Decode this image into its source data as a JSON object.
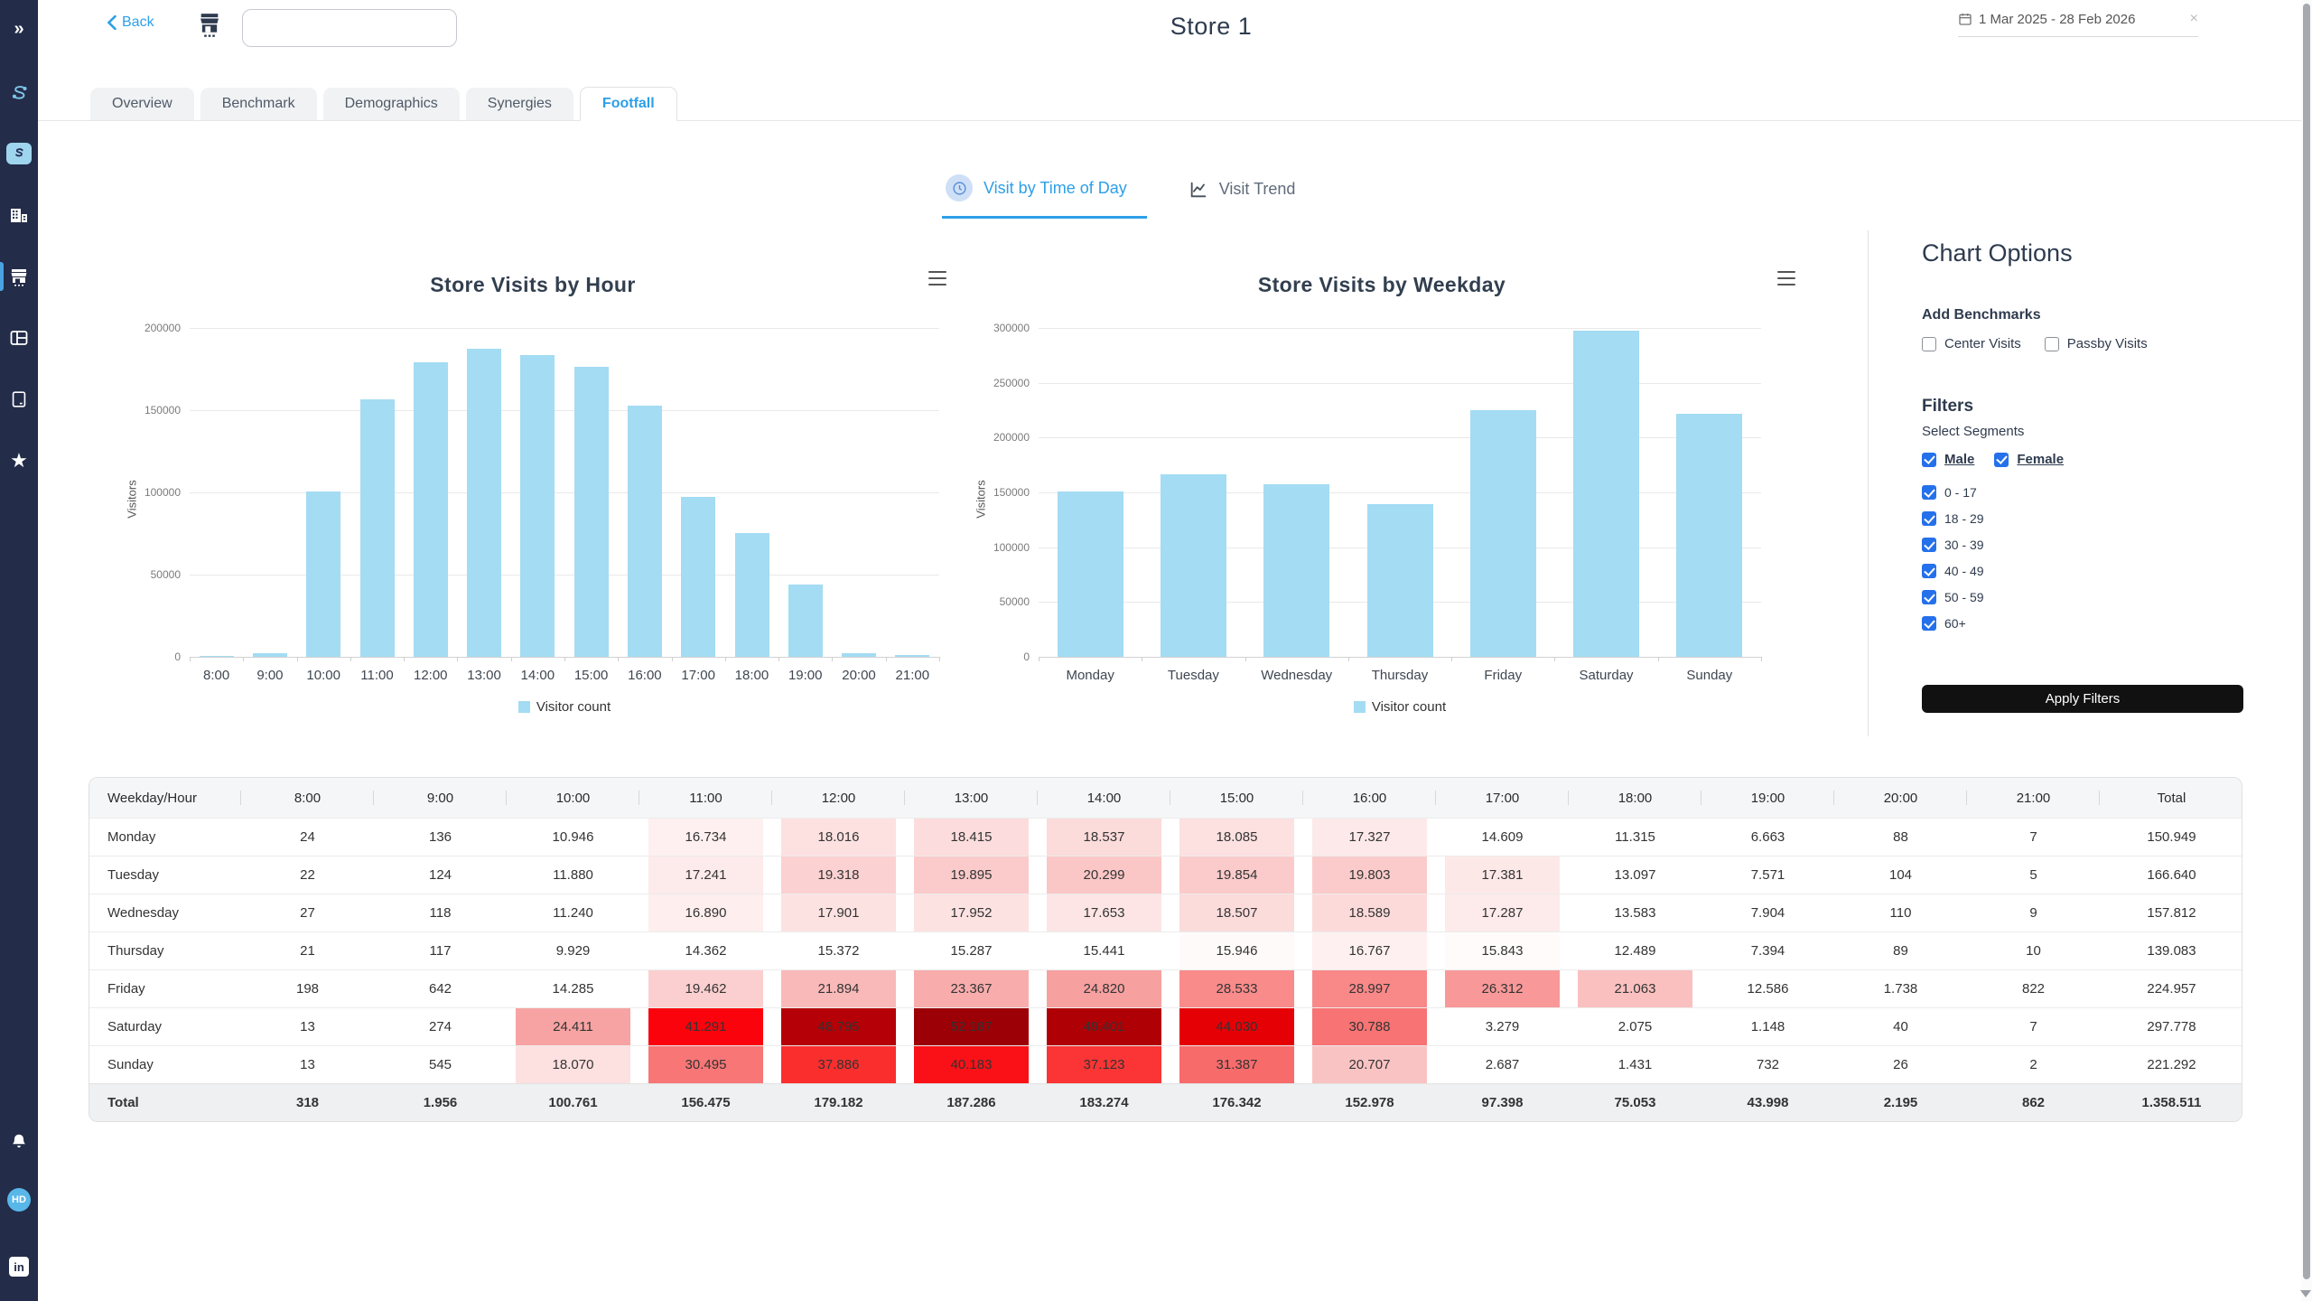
{
  "colors": {
    "accent": "#2d9fe8",
    "checkbox_blue": "#2570eb",
    "sidebar_bg": "#232c49",
    "bar_fill": "#a3dcf3",
    "apply_button_bg": "#111111"
  },
  "sidebar": {
    "icons": [
      "expand-sidebar-icon",
      "logo-icon",
      "app-icon",
      "buildings-icon",
      "store-icon",
      "layout-icon",
      "mobile-icon",
      "star-icon",
      "bell-icon",
      "avatar",
      "linkedin-icon"
    ],
    "active_item": "store-icon",
    "avatar_initials": "HD"
  },
  "header": {
    "back_label": "Back",
    "title": "Store 1",
    "search_value": "",
    "search_placeholder": "",
    "date_range": "1 Mar 2025 - 28 Feb 2026",
    "clear_date": "×"
  },
  "tabs": {
    "items": [
      {
        "label": "Overview",
        "active": false
      },
      {
        "label": "Benchmark",
        "active": false
      },
      {
        "label": "Demographics",
        "active": false
      },
      {
        "label": "Synergies",
        "active": false
      },
      {
        "label": "Footfall",
        "active": true
      }
    ]
  },
  "subtabs": {
    "items": [
      {
        "label": "Visit by Time of Day",
        "icon": "clock-icon",
        "active": true
      },
      {
        "label": "Visit Trend",
        "icon": "trend-icon",
        "active": false
      }
    ]
  },
  "chart_data": [
    {
      "type": "bar",
      "title": "Store Visits by Hour",
      "ylabel": "Visitors",
      "xlabel": "",
      "categories": [
        "8:00",
        "9:00",
        "10:00",
        "11:00",
        "12:00",
        "13:00",
        "14:00",
        "15:00",
        "16:00",
        "17:00",
        "18:00",
        "19:00",
        "20:00",
        "21:00"
      ],
      "values": [
        318,
        1956,
        100761,
        156475,
        179182,
        187286,
        183274,
        176342,
        152978,
        97398,
        75053,
        43998,
        2195,
        862
      ],
      "ylim": [
        0,
        200000
      ],
      "ytick_step": 50000,
      "grid": true,
      "legend": [
        "Visitor count"
      ],
      "legend_position": "bottom",
      "color": "#a3dcf3"
    },
    {
      "type": "bar",
      "title": "Store Visits by Weekday",
      "ylabel": "Visitors",
      "xlabel": "",
      "categories": [
        "Monday",
        "Tuesday",
        "Wednesday",
        "Thursday",
        "Friday",
        "Saturday",
        "Sunday"
      ],
      "values": [
        150949,
        166640,
        157812,
        139083,
        224957,
        297778,
        221292
      ],
      "ylim": [
        0,
        300000
      ],
      "ytick_step": 50000,
      "grid": true,
      "legend": [
        "Visitor count"
      ],
      "legend_position": "bottom",
      "color": "#a3dcf3"
    }
  ],
  "chart_options": {
    "title": "Chart Options",
    "benchmarks_label": "Add Benchmarks",
    "benchmarks": [
      {
        "label": "Center Visits",
        "checked": false
      },
      {
        "label": "Passby Visits",
        "checked": false
      }
    ],
    "filters_title": "Filters",
    "segments_label": "Select Segments",
    "gender_segments": [
      {
        "label": "Male",
        "checked": true
      },
      {
        "label": "Female",
        "checked": true
      }
    ],
    "age_segments": [
      {
        "label": "0 - 17",
        "checked": true
      },
      {
        "label": "18 - 29",
        "checked": true
      },
      {
        "label": "30 - 39",
        "checked": true
      },
      {
        "label": "40 - 49",
        "checked": true
      },
      {
        "label": "50 - 59",
        "checked": true
      },
      {
        "label": "60+",
        "checked": true
      }
    ],
    "apply_button": "Apply Filters"
  },
  "table": {
    "headers": [
      "Weekday/Hour",
      "8:00",
      "9:00",
      "10:00",
      "11:00",
      "12:00",
      "13:00",
      "14:00",
      "15:00",
      "16:00",
      "17:00",
      "18:00",
      "19:00",
      "20:00",
      "21:00",
      "Total"
    ],
    "rows": [
      {
        "label": "Monday",
        "values": [
          "24",
          "136",
          "10.946",
          "16.734",
          "18.016",
          "18.415",
          "18.537",
          "18.085",
          "17.327",
          "14.609",
          "11.315",
          "6.663",
          "88",
          "7",
          "150.949"
        ]
      },
      {
        "label": "Tuesday",
        "values": [
          "22",
          "124",
          "11.880",
          "17.241",
          "19.318",
          "19.895",
          "20.299",
          "19.854",
          "19.803",
          "17.381",
          "13.097",
          "7.571",
          "104",
          "5",
          "166.640"
        ]
      },
      {
        "label": "Wednesday",
        "values": [
          "27",
          "118",
          "11.240",
          "16.890",
          "17.901",
          "17.952",
          "17.653",
          "18.507",
          "18.589",
          "17.287",
          "13.583",
          "7.904",
          "110",
          "9",
          "157.812"
        ]
      },
      {
        "label": "Thursday",
        "values": [
          "21",
          "117",
          "9.929",
          "14.362",
          "15.372",
          "15.287",
          "15.441",
          "15.946",
          "16.767",
          "15.843",
          "12.489",
          "7.394",
          "89",
          "10",
          "139.083"
        ]
      },
      {
        "label": "Friday",
        "values": [
          "198",
          "642",
          "14.285",
          "19.462",
          "21.894",
          "23.367",
          "24.820",
          "28.533",
          "28.997",
          "26.312",
          "21.063",
          "12.586",
          "1.738",
          "822",
          "224.957"
        ]
      },
      {
        "label": "Saturday",
        "values": [
          "13",
          "274",
          "24.411",
          "41.291",
          "48.795",
          "52.187",
          "49.401",
          "44.030",
          "30.788",
          "3.279",
          "2.075",
          "1.148",
          "40",
          "7",
          "297.778"
        ]
      },
      {
        "label": "Sunday",
        "values": [
          "13",
          "545",
          "18.070",
          "30.495",
          "37.886",
          "40.183",
          "37.123",
          "31.387",
          "20.707",
          "2.687",
          "1.431",
          "732",
          "26",
          "2",
          "221.292"
        ]
      }
    ],
    "total_row": {
      "label": "Total",
      "values": [
        "318",
        "1.956",
        "100.761",
        "156.475",
        "179.182",
        "187.286",
        "183.274",
        "176.342",
        "152.978",
        "97.398",
        "75.053",
        "43.998",
        "2.195",
        "862",
        "1.358.511"
      ]
    },
    "heat_scale": {
      "stops": [
        [
          15500,
          "#ffffff"
        ],
        [
          20000,
          "#fbc9c9"
        ],
        [
          24500,
          "#f7a2a2"
        ],
        [
          29000,
          "#f98888"
        ],
        [
          31500,
          "#f86a6a"
        ],
        [
          38000,
          "#fb2d2d"
        ],
        [
          41500,
          "#fa000a"
        ],
        [
          44100,
          "#e40005"
        ],
        [
          49000,
          "#b20006"
        ],
        [
          52200,
          "#9c0006"
        ]
      ]
    }
  }
}
